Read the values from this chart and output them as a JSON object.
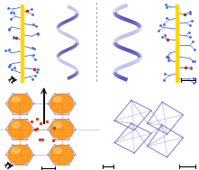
{
  "background_color": "#ffffff",
  "fig_width": 2.21,
  "fig_height": 1.89,
  "dpi": 100,
  "yellow_rod_color": "#FFD700",
  "blue_mol_color": "#4169E1",
  "red_atom_color": "#CC2200",
  "helix_color_light": "#8888DD",
  "helix_color_dark": "#2222AA",
  "cage_color": "#FF8C00",
  "cage_alpha": 0.85,
  "framework_color": "#7070CC",
  "dotted_line_color": "#888888"
}
